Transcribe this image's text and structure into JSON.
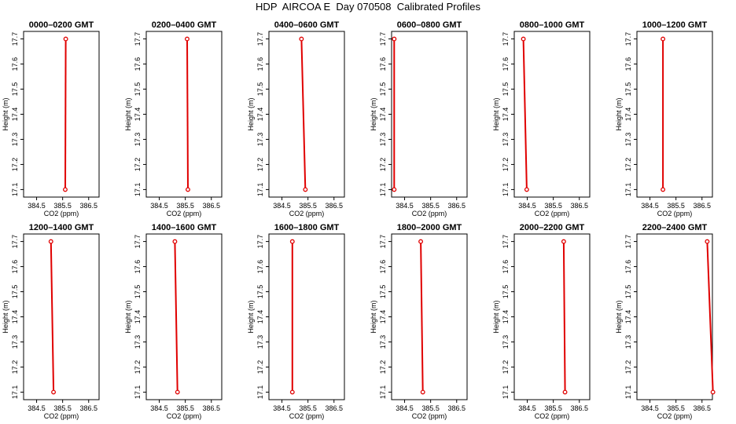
{
  "page": {
    "title": "HDP  AIRCOA E  Day 070508  Calibrated Profiles"
  },
  "colors": {
    "profile": "#e00000",
    "frame": "#000000",
    "background": "#ffffff"
  },
  "chart_data": [
    {
      "type": "line",
      "title": "0000–0200 GMT",
      "xlabel": "CO2 (ppm)",
      "ylabel": "Height (m)",
      "xlim": [
        384.0,
        386.9
      ],
      "ylim": [
        17.07,
        17.73
      ],
      "xticks": [
        384.5,
        385.5,
        386.5
      ],
      "xtick_labels": [
        "384.5",
        "385.5",
        "386.5"
      ],
      "yticks": [
        17.1,
        17.2,
        17.3,
        17.4,
        17.5,
        17.6,
        17.7
      ],
      "ytick_labels": [
        "17.1",
        "17.2",
        "17.3",
        "17.4",
        "17.5",
        "17.6",
        "17.7"
      ],
      "series": [
        {
          "x": [
            385.6,
            385.62
          ],
          "y": [
            17.1,
            17.7
          ]
        }
      ]
    },
    {
      "type": "line",
      "title": "0200–0400 GMT",
      "xlabel": "CO2 (ppm)",
      "ylabel": "Height (m)",
      "xlim": [
        384.0,
        386.9
      ],
      "ylim": [
        17.07,
        17.73
      ],
      "xticks": [
        384.5,
        385.5,
        386.5
      ],
      "xtick_labels": [
        "384.5",
        "385.5",
        "386.5"
      ],
      "yticks": [
        17.1,
        17.2,
        17.3,
        17.4,
        17.5,
        17.6,
        17.7
      ],
      "ytick_labels": [
        "17.1",
        "17.2",
        "17.3",
        "17.4",
        "17.5",
        "17.6",
        "17.7"
      ],
      "series": [
        {
          "x": [
            385.6,
            385.57
          ],
          "y": [
            17.1,
            17.7
          ]
        }
      ]
    },
    {
      "type": "line",
      "title": "0400–0600 GMT",
      "xlabel": "CO2 (ppm)",
      "ylabel": "Height (m)",
      "xlim": [
        384.0,
        386.9
      ],
      "ylim": [
        17.07,
        17.73
      ],
      "xticks": [
        384.5,
        385.5,
        386.5
      ],
      "xtick_labels": [
        "384.5",
        "385.5",
        "386.5"
      ],
      "yticks": [
        17.1,
        17.2,
        17.3,
        17.4,
        17.5,
        17.6,
        17.7
      ],
      "ytick_labels": [
        "17.1",
        "17.2",
        "17.3",
        "17.4",
        "17.5",
        "17.6",
        "17.7"
      ],
      "series": [
        {
          "x": [
            385.4,
            385.25
          ],
          "y": [
            17.1,
            17.7
          ]
        }
      ]
    },
    {
      "type": "line",
      "title": "0600–0800 GMT",
      "xlabel": "CO2 (ppm)",
      "ylabel": "Height (m)",
      "xlim": [
        384.0,
        386.9
      ],
      "ylim": [
        17.07,
        17.73
      ],
      "xticks": [
        384.5,
        385.5,
        386.5
      ],
      "xtick_labels": [
        "384.5",
        "385.5",
        "386.5"
      ],
      "yticks": [
        17.1,
        17.2,
        17.3,
        17.4,
        17.5,
        17.6,
        17.7
      ],
      "ytick_labels": [
        "17.1",
        "17.2",
        "17.3",
        "17.4",
        "17.5",
        "17.6",
        "17.7"
      ],
      "series": [
        {
          "x": [
            384.1,
            384.1
          ],
          "y": [
            17.1,
            17.7
          ]
        }
      ]
    },
    {
      "type": "line",
      "title": "0800–1000 GMT",
      "xlabel": "CO2 (ppm)",
      "ylabel": "Height (m)",
      "xlim": [
        384.0,
        386.9
      ],
      "ylim": [
        17.07,
        17.73
      ],
      "xticks": [
        384.5,
        385.5,
        386.5
      ],
      "xtick_labels": [
        "384.5",
        "385.5",
        "386.5"
      ],
      "yticks": [
        17.1,
        17.2,
        17.3,
        17.4,
        17.5,
        17.6,
        17.7
      ],
      "ytick_labels": [
        "17.1",
        "17.2",
        "17.3",
        "17.4",
        "17.5",
        "17.6",
        "17.7"
      ],
      "series": [
        {
          "x": [
            384.48,
            384.35
          ],
          "y": [
            17.1,
            17.7
          ]
        }
      ]
    },
    {
      "type": "line",
      "title": "1000–1200 GMT",
      "xlabel": "CO2 (ppm)",
      "ylabel": "Height (m)",
      "xlim": [
        384.0,
        386.9
      ],
      "ylim": [
        17.07,
        17.73
      ],
      "xticks": [
        384.5,
        385.5,
        386.5
      ],
      "xtick_labels": [
        "384.5",
        "385.5",
        "386.5"
      ],
      "yticks": [
        17.1,
        17.2,
        17.3,
        17.4,
        17.5,
        17.6,
        17.7
      ],
      "ytick_labels": [
        "17.1",
        "17.2",
        "17.3",
        "17.4",
        "17.5",
        "17.6",
        "17.7"
      ],
      "series": [
        {
          "x": [
            385.0,
            385.0
          ],
          "y": [
            17.1,
            17.7
          ]
        }
      ]
    },
    {
      "type": "line",
      "title": "1200–1400 GMT",
      "xlabel": "CO2 (ppm)",
      "ylabel": "Height (m)",
      "xlim": [
        384.0,
        386.9
      ],
      "ylim": [
        17.07,
        17.73
      ],
      "xticks": [
        384.5,
        385.5,
        386.5
      ],
      "xtick_labels": [
        "384.5",
        "385.5",
        "386.5"
      ],
      "yticks": [
        17.1,
        17.2,
        17.3,
        17.4,
        17.5,
        17.6,
        17.7
      ],
      "ytick_labels": [
        "17.1",
        "17.2",
        "17.3",
        "17.4",
        "17.5",
        "17.6",
        "17.7"
      ],
      "series": [
        {
          "x": [
            385.15,
            385.05
          ],
          "y": [
            17.1,
            17.7
          ]
        }
      ]
    },
    {
      "type": "line",
      "title": "1400–1600 GMT",
      "xlabel": "CO2 (ppm)",
      "ylabel": "Height (m)",
      "xlim": [
        384.0,
        386.9
      ],
      "ylim": [
        17.07,
        17.73
      ],
      "xticks": [
        384.5,
        385.5,
        386.5
      ],
      "xtick_labels": [
        "384.5",
        "385.5",
        "386.5"
      ],
      "yticks": [
        17.1,
        17.2,
        17.3,
        17.4,
        17.5,
        17.6,
        17.7
      ],
      "ytick_labels": [
        "17.1",
        "17.2",
        "17.3",
        "17.4",
        "17.5",
        "17.6",
        "17.7"
      ],
      "series": [
        {
          "x": [
            385.2,
            385.1
          ],
          "y": [
            17.1,
            17.7
          ]
        }
      ]
    },
    {
      "type": "line",
      "title": "1600–1800 GMT",
      "xlabel": "CO2 (ppm)",
      "ylabel": "Height (m)",
      "xlim": [
        384.0,
        386.9
      ],
      "ylim": [
        17.07,
        17.73
      ],
      "xticks": [
        384.5,
        385.5,
        386.5
      ],
      "xtick_labels": [
        "384.5",
        "385.5",
        "386.5"
      ],
      "yticks": [
        17.1,
        17.2,
        17.3,
        17.4,
        17.5,
        17.6,
        17.7
      ],
      "ytick_labels": [
        "17.1",
        "17.2",
        "17.3",
        "17.4",
        "17.5",
        "17.6",
        "17.7"
      ],
      "series": [
        {
          "x": [
            384.9,
            384.9
          ],
          "y": [
            17.1,
            17.7
          ]
        }
      ]
    },
    {
      "type": "line",
      "title": "1800–2000 GMT",
      "xlabel": "CO2 (ppm)",
      "ylabel": "Height (m)",
      "xlim": [
        384.0,
        386.9
      ],
      "ylim": [
        17.07,
        17.73
      ],
      "xticks": [
        384.5,
        385.5,
        386.5
      ],
      "xtick_labels": [
        "384.5",
        "385.5",
        "386.5"
      ],
      "yticks": [
        17.1,
        17.2,
        17.3,
        17.4,
        17.5,
        17.6,
        17.7
      ],
      "ytick_labels": [
        "17.1",
        "17.2",
        "17.3",
        "17.4",
        "17.5",
        "17.6",
        "17.7"
      ],
      "series": [
        {
          "x": [
            385.2,
            385.12
          ],
          "y": [
            17.1,
            17.7
          ]
        }
      ]
    },
    {
      "type": "line",
      "title": "2000–2200 GMT",
      "xlabel": "CO2 (ppm)",
      "ylabel": "Height (m)",
      "xlim": [
        384.0,
        386.9
      ],
      "ylim": [
        17.07,
        17.73
      ],
      "xticks": [
        384.5,
        385.5,
        386.5
      ],
      "xtick_labels": [
        "384.5",
        "385.5",
        "386.5"
      ],
      "yticks": [
        17.1,
        17.2,
        17.3,
        17.4,
        17.5,
        17.6,
        17.7
      ],
      "ytick_labels": [
        "17.1",
        "17.2",
        "17.3",
        "17.4",
        "17.5",
        "17.6",
        "17.7"
      ],
      "series": [
        {
          "x": [
            385.95,
            385.9
          ],
          "y": [
            17.1,
            17.7
          ]
        }
      ]
    },
    {
      "type": "line",
      "title": "2200–2400 GMT",
      "xlabel": "CO2 (ppm)",
      "ylabel": "Height (m)",
      "xlim": [
        384.0,
        386.9
      ],
      "ylim": [
        17.07,
        17.73
      ],
      "xticks": [
        384.5,
        385.5,
        386.5
      ],
      "xtick_labels": [
        "384.5",
        "385.5",
        "386.5"
      ],
      "yticks": [
        17.1,
        17.2,
        17.3,
        17.4,
        17.5,
        17.6,
        17.7
      ],
      "ytick_labels": [
        "17.1",
        "17.2",
        "17.3",
        "17.4",
        "17.5",
        "17.6",
        "17.7"
      ],
      "series": [
        {
          "x": [
            386.92,
            386.7
          ],
          "y": [
            17.1,
            17.7
          ]
        }
      ]
    }
  ]
}
